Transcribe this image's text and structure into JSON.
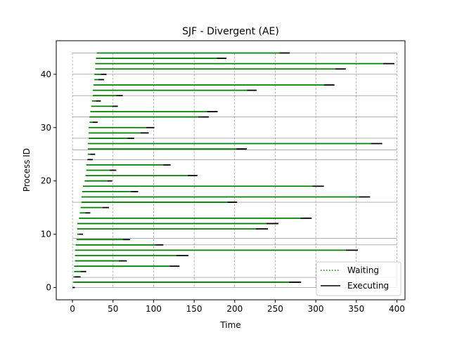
{
  "chart_data": {
    "type": "line",
    "title": "SJF - Divergent (AE)",
    "xlabel": "Time",
    "ylabel": "Process ID",
    "xlim": [
      -20,
      410
    ],
    "ylim": [
      -2.3,
      46.3
    ],
    "xticks": [
      0,
      50,
      100,
      150,
      200,
      250,
      300,
      350,
      400
    ],
    "yticks": [
      0,
      10,
      20,
      30,
      40
    ],
    "grid_x": [
      0,
      50,
      100,
      150,
      200,
      250,
      300,
      350,
      400
    ],
    "grid_y": [
      0,
      1.9,
      8,
      9.2,
      16,
      24,
      25.8,
      28,
      32,
      36,
      40,
      44
    ],
    "legend": {
      "position": "lower-right",
      "entries": [
        "Waiting",
        "Executing"
      ]
    },
    "colors": {
      "waiting": "#008000",
      "executing": "#000000",
      "grid": "#808080"
    },
    "series": [
      {
        "name": "Waiting",
        "style": "dotted",
        "color": "#008000"
      },
      {
        "name": "Executing",
        "style": "solid",
        "color": "#000000"
      }
    ],
    "processes": [
      {
        "id": 0,
        "arrival": 0,
        "start": 0,
        "end": 3
      },
      {
        "id": 1,
        "arrival": 1,
        "start": 267,
        "end": 282
      },
      {
        "id": 2,
        "arrival": 1,
        "start": 3,
        "end": 10
      },
      {
        "id": 3,
        "arrival": 2,
        "start": 10,
        "end": 17
      },
      {
        "id": 4,
        "arrival": 2,
        "start": 120,
        "end": 132
      },
      {
        "id": 5,
        "arrival": 3,
        "start": 57,
        "end": 67
      },
      {
        "id": 6,
        "arrival": 3,
        "start": 128,
        "end": 143
      },
      {
        "id": 7,
        "arrival": 3,
        "start": 337,
        "end": 352
      },
      {
        "id": 8,
        "arrival": 4,
        "start": 102,
        "end": 112
      },
      {
        "id": 9,
        "arrival": 5,
        "start": 62,
        "end": 71
      },
      {
        "id": 10,
        "arrival": 6,
        "start": 8,
        "end": 13
      },
      {
        "id": 11,
        "arrival": 6,
        "start": 226,
        "end": 241
      },
      {
        "id": 12,
        "arrival": 6,
        "start": 239,
        "end": 254
      },
      {
        "id": 13,
        "arrival": 8,
        "start": 281,
        "end": 295
      },
      {
        "id": 14,
        "arrival": 9,
        "start": 16,
        "end": 22
      },
      {
        "id": 15,
        "arrival": 10,
        "start": 37,
        "end": 45
      },
      {
        "id": 16,
        "arrival": 11,
        "start": 191,
        "end": 203
      },
      {
        "id": 17,
        "arrival": 11,
        "start": 353,
        "end": 367
      },
      {
        "id": 18,
        "arrival": 12,
        "start": 72,
        "end": 81
      },
      {
        "id": 19,
        "arrival": 13,
        "start": 296,
        "end": 310
      },
      {
        "id": 20,
        "arrival": 15,
        "start": 43,
        "end": 49
      },
      {
        "id": 21,
        "arrival": 16,
        "start": 142,
        "end": 154
      },
      {
        "id": 22,
        "arrival": 17,
        "start": 46,
        "end": 54
      },
      {
        "id": 23,
        "arrival": 17,
        "start": 112,
        "end": 121
      },
      {
        "id": 24,
        "arrival": 18,
        "start": 19,
        "end": 25
      },
      {
        "id": 25,
        "arrival": 19,
        "start": 22,
        "end": 28
      },
      {
        "id": 26,
        "arrival": 19,
        "start": 202,
        "end": 215
      },
      {
        "id": 27,
        "arrival": 19,
        "start": 368,
        "end": 382
      },
      {
        "id": 28,
        "arrival": 20,
        "start": 68,
        "end": 76
      },
      {
        "id": 29,
        "arrival": 20,
        "start": 84,
        "end": 94
      },
      {
        "id": 30,
        "arrival": 20,
        "start": 91,
        "end": 101
      },
      {
        "id": 31,
        "arrival": 21,
        "start": 25,
        "end": 31
      },
      {
        "id": 32,
        "arrival": 21,
        "start": 155,
        "end": 168
      },
      {
        "id": 33,
        "arrival": 22,
        "start": 166,
        "end": 179
      },
      {
        "id": 34,
        "arrival": 23,
        "start": 49,
        "end": 56
      },
      {
        "id": 35,
        "arrival": 24,
        "start": 29,
        "end": 35
      },
      {
        "id": 36,
        "arrival": 25,
        "start": 54,
        "end": 62
      },
      {
        "id": 37,
        "arrival": 25,
        "start": 215,
        "end": 227
      },
      {
        "id": 38,
        "arrival": 26,
        "start": 310,
        "end": 323
      },
      {
        "id": 39,
        "arrival": 27,
        "start": 32,
        "end": 39
      },
      {
        "id": 40,
        "arrival": 27,
        "start": 35,
        "end": 42
      },
      {
        "id": 41,
        "arrival": 28,
        "start": 324,
        "end": 337
      },
      {
        "id": 42,
        "arrival": 28,
        "start": 383,
        "end": 397
      },
      {
        "id": 43,
        "arrival": 29,
        "start": 178,
        "end": 190
      },
      {
        "id": 44,
        "arrival": 30,
        "start": 255,
        "end": 268
      }
    ]
  }
}
